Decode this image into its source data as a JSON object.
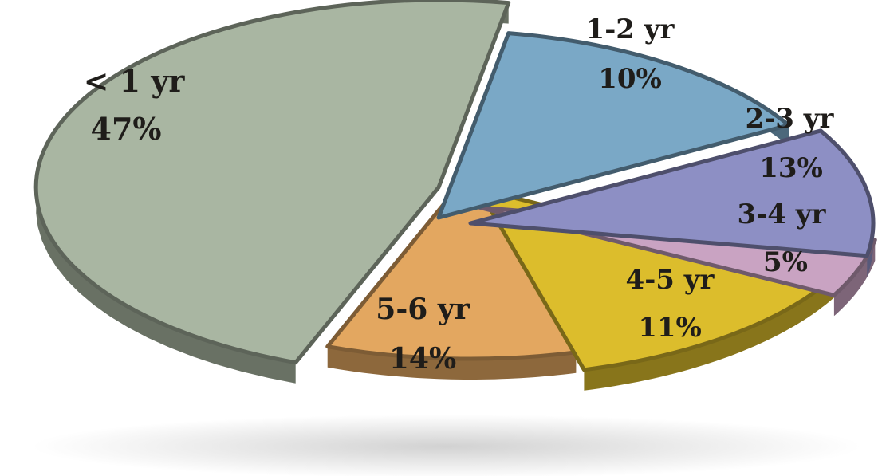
{
  "chart_data": {
    "type": "pie",
    "title": "",
    "categories": [
      "< 1 yr",
      "1-2 yr",
      "2-3 yr",
      "3-4 yr",
      "4-5 yr",
      "5-6 yr"
    ],
    "values": [
      47,
      10,
      13,
      5,
      11,
      14
    ],
    "value_labels": [
      "47%",
      "10%",
      "13%",
      "5%",
      "11%",
      "14%"
    ],
    "colors": [
      "#a9b6a2",
      "#e3a760",
      "#dcbd2c",
      "#c9a3c2",
      "#8d8fc4",
      "#7aa8c6"
    ],
    "exploded": true,
    "three_d": true
  }
}
